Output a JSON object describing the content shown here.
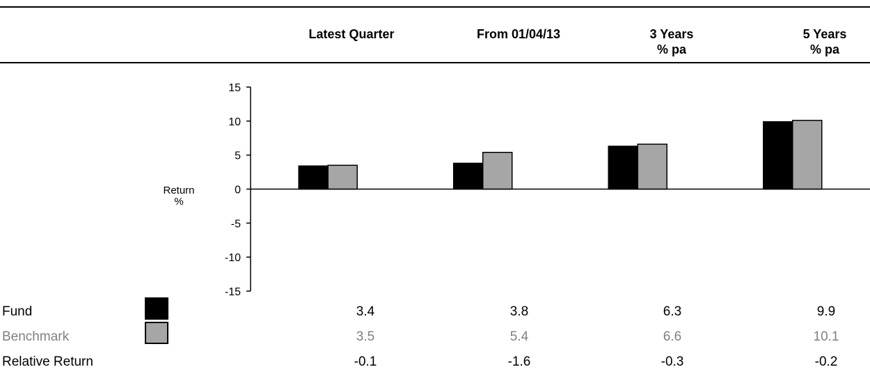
{
  "chart_data": {
    "type": "bar",
    "categories": [
      "Latest Quarter",
      "From 01/04/13",
      "3 Years\n% pa",
      "5 Years\n% pa"
    ],
    "series": [
      {
        "name": "Fund",
        "values": [
          3.4,
          3.8,
          6.3,
          9.9
        ],
        "color": "#000000"
      },
      {
        "name": "Benchmark",
        "values": [
          3.5,
          5.4,
          6.6,
          10.1
        ],
        "color": "#a6a6a6"
      }
    ],
    "relative_return": {
      "name": "Relative Return",
      "values": [
        "-0.1",
        "-1.6",
        "-0.3",
        "-0.2"
      ]
    },
    "display_values": {
      "Fund": [
        "3.4",
        "3.8",
        "6.3",
        "9.9"
      ],
      "Benchmark": [
        "3.5",
        "5.4",
        "6.6",
        "10.1"
      ]
    },
    "ylabel": "Return\n%",
    "ylim": [
      -15,
      15
    ],
    "yticks": [
      15,
      10,
      5,
      0,
      -5,
      -10,
      -15
    ],
    "benchmark_text_color": "#808080",
    "grid": false,
    "legend": "table rows below chart"
  }
}
